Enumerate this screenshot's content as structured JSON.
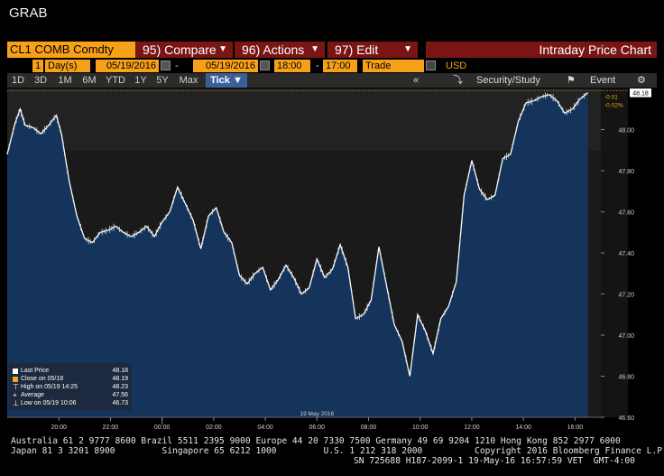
{
  "window_title": "GRAB",
  "toolbar": {
    "ticker": "CL1 COMB Comdty",
    "compare": "95) Compare",
    "actions": "96) Actions",
    "edit": "97) Edit",
    "chart_title": "Intraday Price Chart"
  },
  "range_bar": {
    "period_count": "1",
    "period_unit": "Day(s)",
    "start_date": "05/19/2016",
    "end_date": "05/19/2016",
    "start_time": "18:00",
    "end_time": "17:00",
    "field": "Trade",
    "currency": "USD"
  },
  "timeframes": [
    "1D",
    "3D",
    "1M",
    "6M",
    "YTD",
    "1Y",
    "5Y",
    "Max"
  ],
  "tick_button": "Tick ▼",
  "tools": {
    "collapse": "«",
    "security_study": "Security/Study",
    "event": "Event"
  },
  "colors": {
    "orange": "#f7a11a",
    "fn_red": "#7a1515",
    "area_fill": "#14345c",
    "price_line": "#ffffff",
    "close_line": "#f7a11a"
  },
  "chart_data": {
    "type": "area",
    "y_ticks": [
      "48.00",
      "47.80",
      "47.60",
      "47.40",
      "47.20",
      "47.00",
      "46.80",
      "46.60"
    ],
    "ylim": [
      46.6,
      48.2
    ],
    "x_ticks": [
      "20:00",
      "22:00",
      "00:00",
      "02:00",
      "04:00",
      "06:00",
      "08:00",
      "10:00",
      "12:00",
      "14:00",
      "16:00"
    ],
    "x_date_label": "19 May 2016",
    "xlim": [
      18.0,
      41.0
    ],
    "grid": false,
    "close_prev": 48.19,
    "last_price_label": "48.18",
    "change_labels": [
      "-0.01",
      "-0.02%"
    ],
    "series": [
      {
        "x": [
          18.0,
          18.3,
          18.5,
          18.7,
          19.0,
          19.3,
          19.6,
          19.9,
          20.1,
          20.4,
          20.7,
          21.0,
          21.3,
          21.6,
          21.9,
          22.2,
          22.5,
          22.8,
          23.1,
          23.4,
          23.7,
          24.0,
          24.3,
          24.6,
          24.9,
          25.2,
          25.5,
          25.8,
          26.1,
          26.4,
          26.7,
          27.0,
          27.3,
          27.6,
          27.9,
          28.2,
          28.5,
          28.8,
          29.1,
          29.4,
          29.7,
          30.0,
          30.3,
          30.6,
          30.9,
          31.2,
          31.5,
          31.8,
          32.1,
          32.4,
          32.7,
          33.0,
          33.3,
          33.6,
          33.9,
          34.2,
          34.5,
          34.8,
          35.1,
          35.4,
          35.7,
          36.0,
          36.3,
          36.6,
          36.9,
          37.2,
          37.5,
          37.8,
          38.1,
          38.4,
          38.7,
          39.0,
          39.3,
          39.6,
          39.9,
          40.2,
          40.5
        ],
        "y": [
          47.88,
          48.03,
          48.1,
          48.02,
          48.01,
          47.98,
          48.02,
          48.07,
          47.98,
          47.75,
          47.58,
          47.47,
          47.45,
          47.5,
          47.51,
          47.53,
          47.5,
          47.48,
          47.5,
          47.53,
          47.48,
          47.55,
          47.6,
          47.72,
          47.64,
          47.56,
          47.42,
          47.58,
          47.62,
          47.5,
          47.45,
          47.29,
          47.25,
          47.3,
          47.33,
          47.22,
          47.27,
          47.34,
          47.28,
          47.2,
          47.23,
          47.37,
          47.28,
          47.32,
          47.44,
          47.33,
          47.08,
          47.1,
          47.17,
          47.43,
          47.24,
          47.05,
          46.97,
          46.8,
          47.1,
          47.02,
          46.91,
          47.08,
          47.14,
          47.26,
          47.68,
          47.85,
          47.71,
          47.66,
          47.68,
          47.86,
          47.88,
          48.04,
          48.13,
          48.14,
          48.16,
          48.17,
          48.14,
          48.08,
          48.1,
          48.15,
          48.18
        ]
      }
    ]
  },
  "legend": [
    {
      "name": "Last Price",
      "value": "48.18"
    },
    {
      "name": "Close on 05/18",
      "value": "48.19"
    },
    {
      "name": "High on 05/19 14:25",
      "value": "48.23"
    },
    {
      "name": "Average",
      "value": "47.56"
    },
    {
      "name": "Low on 05/19 10:06",
      "value": "46.73"
    }
  ],
  "footer": {
    "line1": "Australia 61 2 9777 8600 Brazil 5511 2395 9000 Europe 44 20 7330 7500 Germany 49 69 9204 1210 Hong Kong 852 2977 6000",
    "line2": "Japan 81 3 3201 8900         Singapore 65 6212 1000         U.S. 1 212 318 2000          Copyright 2016 Bloomberg Finance L.P.",
    "line3": "SN 725688 H187-2099-1 19-May-16 16:57:59 VET  GMT-4:00"
  }
}
